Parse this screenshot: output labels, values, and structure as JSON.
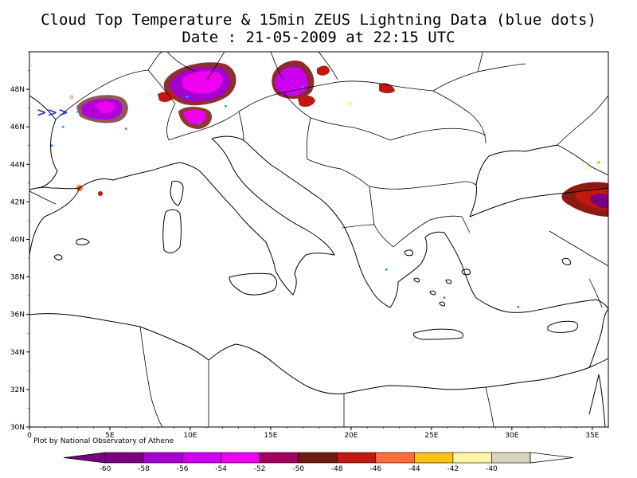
{
  "title_line1": "Cloud Top Temperature & 15min ZEUS Lightning Data (blue dots)",
  "title_line2": "Date : 21-05-2009 at 22:15 UTC",
  "credit": "Plot by National Observatory of Athene",
  "arrow_marker": ">>>",
  "colors": {
    "lightning": "#1f90ff",
    "coast": "#000000",
    "arrow": "#1f2fe0"
  },
  "map": {
    "lon_range": [
      0,
      36
    ],
    "lat_range": [
      30,
      50
    ],
    "x_ticks": [
      {
        "lon": 0,
        "label": "0"
      },
      {
        "lon": 5,
        "label": "5E"
      },
      {
        "lon": 10,
        "label": "10E"
      },
      {
        "lon": 15,
        "label": "15E"
      },
      {
        "lon": 20,
        "label": "20E"
      },
      {
        "lon": 25,
        "label": "25E"
      },
      {
        "lon": 30,
        "label": "30E"
      },
      {
        "lon": 35,
        "label": "35E"
      }
    ],
    "y_ticks": [
      {
        "lat": 30,
        "label": "30N"
      },
      {
        "lat": 32,
        "label": "32N"
      },
      {
        "lat": 34,
        "label": "34N"
      },
      {
        "lat": 36,
        "label": "36N"
      },
      {
        "lat": 38,
        "label": "38N"
      },
      {
        "lat": 40,
        "label": "40N"
      },
      {
        "lat": 42,
        "label": "42N"
      },
      {
        "lat": 44,
        "label": "44N"
      },
      {
        "lat": 46,
        "label": "46N"
      },
      {
        "lat": 48,
        "label": "48N"
      }
    ]
  },
  "colorbar": {
    "labels": [
      "-60",
      "-58",
      "-56",
      "-54",
      "-52",
      "-50",
      "-48",
      "-46",
      "-44",
      "-42",
      "-40"
    ],
    "colors": [
      "#7a0080",
      "#a500d0",
      "#cc00ee",
      "#ee00f0",
      "#a00060",
      "#6e1a10",
      "#c01a10",
      "#ff6e3c",
      "#ffc21a",
      "#fff4a8",
      "#d6d4bc"
    ],
    "below_color": "#7a0080",
    "above_color": "#ffffff"
  }
}
